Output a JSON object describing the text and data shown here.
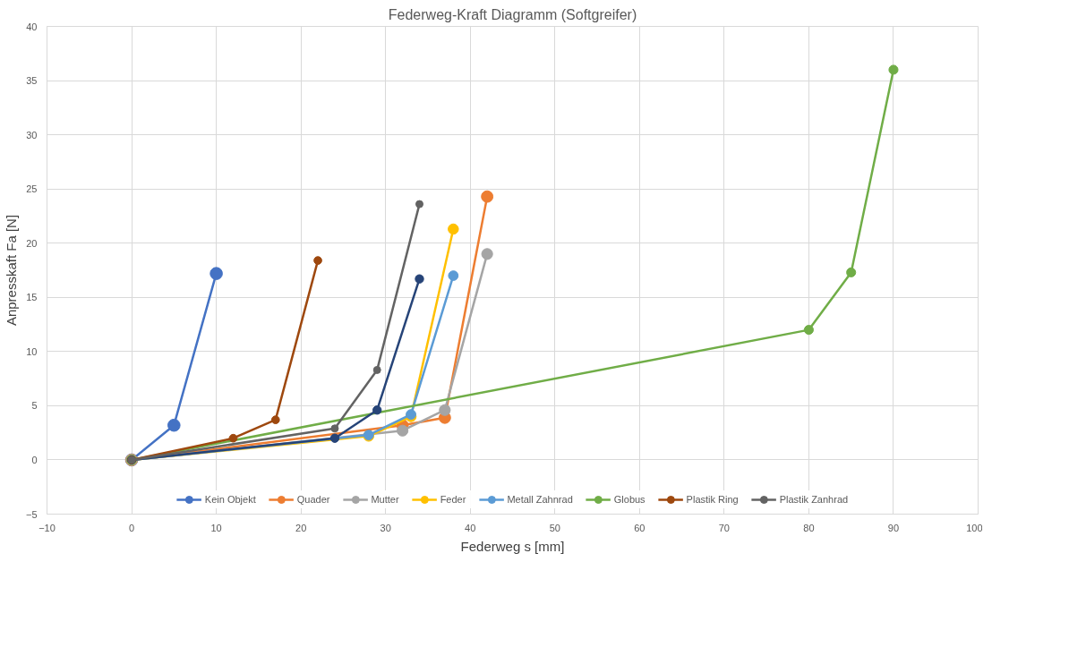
{
  "chart_data": {
    "type": "line",
    "title": "Federweg-Kraft Diagramm (Softgreifer)",
    "xlabel": "Federweg s [mm]",
    "ylabel": "Anpresskaft Fa [N]",
    "xlim": [
      -10,
      100
    ],
    "xticks": [
      -10,
      0,
      10,
      20,
      30,
      40,
      50,
      60,
      70,
      80,
      90,
      100
    ],
    "ylim": [
      -5,
      40
    ],
    "yticks": [
      -5,
      0,
      5,
      10,
      15,
      20,
      25,
      30,
      35,
      40
    ],
    "grid": true,
    "legend": "bottom",
    "marker": "circle",
    "line_style": "solid",
    "series": [
      {
        "name": "Kein Objekt",
        "color": "#4472c4",
        "x": [
          0,
          5,
          10
        ],
        "values": [
          0,
          3.2,
          17.2
        ]
      },
      {
        "name": "Quader",
        "color": "#ed7d31",
        "x": [
          0,
          32,
          37,
          42
        ],
        "values": [
          0,
          3.2,
          3.9,
          24.3
        ]
      },
      {
        "name": "Mutter",
        "color": "#a5a5a5",
        "x": [
          0,
          32,
          37,
          42
        ],
        "values": [
          0,
          2.7,
          4.6,
          19.0
        ]
      },
      {
        "name": "Feder",
        "color": "#ffc000",
        "x": [
          0,
          28,
          33,
          38
        ],
        "values": [
          0,
          2.2,
          4.0,
          21.3
        ]
      },
      {
        "name": "Metall Zahnrad",
        "color": "#5b9bd5",
        "x": [
          0,
          28,
          33,
          38
        ],
        "values": [
          0,
          2.3,
          4.2,
          17.0
        ]
      },
      {
        "name": "Globus",
        "color": "#70ad47",
        "x": [
          0,
          80,
          85,
          90
        ],
        "values": [
          0,
          12.0,
          17.3,
          36.0
        ]
      },
      {
        "color": "#264478",
        "x": [
          0,
          24,
          29,
          34
        ],
        "values": [
          0,
          2.0,
          4.6,
          16.7
        ]
      },
      {
        "name": "Plastik Ring",
        "color": "#9e480e",
        "x": [
          0,
          12,
          17,
          22
        ],
        "values": [
          0,
          2.0,
          3.7,
          18.4
        ]
      },
      {
        "name": "Plastik Zanhrad",
        "color": "#636363",
        "x": [
          0,
          24,
          29,
          34
        ],
        "values": [
          0,
          2.9,
          8.3,
          23.6
        ]
      }
    ]
  }
}
